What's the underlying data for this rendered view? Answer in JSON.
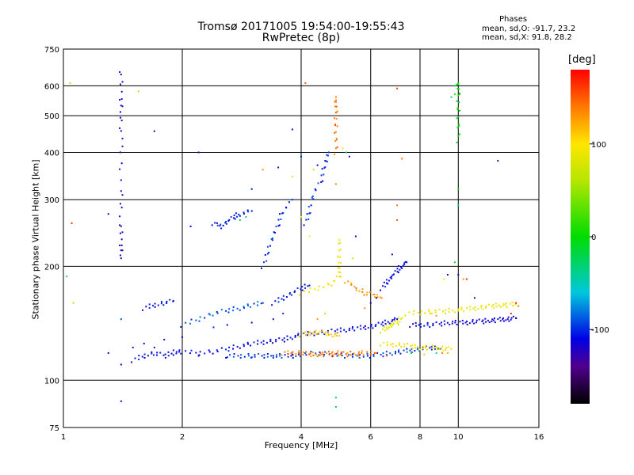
{
  "title_line1": "Tromsø 20171005 19:54:00-19:55:43",
  "title_line2": "RwPretec (8p)",
  "phases": {
    "title": "Phases",
    "o_text": "mean, sd,O: -91.7, 23.2",
    "x_text": "mean, sd,X:  91.8, 28.2"
  },
  "colorbar": {
    "unit": "[deg]",
    "tick_labels": [
      "100",
      "0",
      "-100"
    ],
    "tick_values": [
      100,
      0,
      -100
    ],
    "range": [
      -180,
      180
    ]
  },
  "chart_data": {
    "type": "scatter",
    "xlabel": "Frequency [MHz]",
    "ylabel": "Stationary phase Virtual Height [km]",
    "xscale": "log",
    "yscale": "log",
    "xlim": [
      1,
      16
    ],
    "ylim": [
      75,
      750
    ],
    "xticks": [
      1,
      2,
      4,
      6,
      8,
      10,
      16
    ],
    "yticks": [
      75,
      100,
      200,
      300,
      400,
      500,
      600,
      750
    ],
    "grid": true,
    "series": [
      {
        "trace": [
          [
            1.5,
            113
          ],
          [
            1.6,
            116
          ],
          [
            1.7,
            118
          ],
          [
            1.8,
            116
          ],
          [
            1.9,
            118
          ],
          [
            2.0,
            119
          ],
          [
            2.2,
            118
          ],
          [
            2.4,
            119
          ],
          [
            2.6,
            121
          ],
          [
            2.8,
            123
          ],
          [
            3.0,
            125
          ],
          [
            3.2,
            126
          ],
          [
            3.4,
            127
          ],
          [
            3.6,
            128
          ],
          [
            3.8,
            130
          ],
          [
            4.0,
            132
          ],
          [
            4.3,
            133
          ],
          [
            4.6,
            134
          ],
          [
            4.9,
            135
          ],
          [
            5.2,
            136
          ],
          [
            5.5,
            137
          ],
          [
            5.8,
            138
          ],
          [
            6.1,
            139
          ],
          [
            6.4,
            141
          ],
          [
            6.7,
            143
          ],
          [
            7.0,
            145
          ]
        ],
        "phase": -110
      },
      {
        "trace": [
          [
            2.6,
            116
          ],
          [
            2.8,
            116
          ],
          [
            3.0,
            116
          ],
          [
            3.2,
            116
          ],
          [
            3.4,
            116
          ],
          [
            3.6,
            116
          ],
          [
            3.8,
            116
          ],
          [
            4.0,
            117
          ],
          [
            4.4,
            118
          ],
          [
            4.8,
            117
          ],
          [
            5.2,
            116
          ],
          [
            5.6,
            116
          ],
          [
            6.0,
            116
          ],
          [
            6.4,
            117
          ],
          [
            6.8,
            118
          ],
          [
            7.2,
            119
          ],
          [
            7.6,
            120
          ],
          [
            8.0,
            121
          ],
          [
            8.5,
            122
          ],
          [
            9.0,
            121
          ]
        ],
        "phase": -95
      },
      {
        "trace": [
          [
            3.6,
            118
          ],
          [
            3.8,
            118
          ],
          [
            4.0,
            118
          ],
          [
            4.2,
            117
          ],
          [
            4.4,
            117
          ],
          [
            4.6,
            117
          ],
          [
            4.8,
            118
          ],
          [
            5.0,
            118
          ],
          [
            5.2,
            117
          ],
          [
            5.5,
            118
          ],
          [
            5.8,
            118
          ],
          [
            6.2,
            118
          ]
        ],
        "phase": 140
      },
      {
        "trace": [
          [
            4.0,
            132
          ],
          [
            4.2,
            133
          ],
          [
            4.4,
            134
          ],
          [
            4.6,
            133
          ],
          [
            4.8,
            132
          ],
          [
            5.0,
            131
          ]
        ],
        "phase": 110
      },
      {
        "trace": [
          [
            6.4,
            135
          ],
          [
            6.6,
            138
          ],
          [
            6.8,
            140
          ],
          [
            7.0,
            142
          ],
          [
            7.2,
            146
          ]
        ],
        "phase": 85
      },
      {
        "trace": [
          [
            7.6,
            140
          ],
          [
            8.0,
            140
          ],
          [
            8.5,
            140
          ],
          [
            9.0,
            141
          ],
          [
            9.5,
            142
          ],
          [
            10.0,
            142
          ],
          [
            10.5,
            142
          ],
          [
            11.0,
            143
          ],
          [
            11.5,
            143
          ],
          [
            12.0,
            144
          ],
          [
            12.5,
            144
          ],
          [
            13.0,
            145
          ],
          [
            13.5,
            145
          ],
          [
            14.0,
            146
          ]
        ],
        "phase": -115
      },
      {
        "trace": [
          [
            7.4,
            150
          ],
          [
            8.0,
            151
          ],
          [
            8.6,
            152
          ],
          [
            9.2,
            152
          ],
          [
            9.8,
            153
          ],
          [
            10.4,
            154
          ],
          [
            11.0,
            155
          ],
          [
            11.6,
            156
          ],
          [
            12.2,
            157
          ],
          [
            12.8,
            158
          ],
          [
            13.4,
            158
          ],
          [
            14.0,
            159
          ]
        ],
        "phase": 90
      },
      {
        "trace": [
          [
            3.4,
            160
          ],
          [
            3.6,
            165
          ],
          [
            3.8,
            170
          ],
          [
            4.0,
            175
          ],
          [
            4.2,
            178
          ]
        ],
        "phase": -105
      },
      {
        "trace": [
          [
            4.0,
            170
          ],
          [
            4.4,
            175
          ],
          [
            4.8,
            180
          ],
          [
            5.0,
            190
          ],
          [
            5.0,
            200
          ],
          [
            5.0,
            215
          ],
          [
            5.0,
            235
          ]
        ],
        "phase": 95
      },
      {
        "trace": [
          [
            4.1,
            260
          ],
          [
            4.2,
            280
          ],
          [
            4.3,
            310
          ],
          [
            4.5,
            340
          ],
          [
            4.6,
            370
          ],
          [
            4.7,
            400
          ]
        ],
        "phase": -100
      },
      {
        "trace": [
          [
            3.2,
            200
          ],
          [
            3.3,
            220
          ],
          [
            3.4,
            240
          ],
          [
            3.5,
            260
          ],
          [
            3.6,
            280
          ],
          [
            3.8,
            300
          ]
        ],
        "phase": -100
      },
      {
        "trace": [
          [
            4.9,
            400
          ],
          [
            4.9,
            440
          ],
          [
            4.9,
            480
          ],
          [
            4.9,
            520
          ],
          [
            4.9,
            550
          ]
        ],
        "phase": 140
      },
      {
        "trace": [
          [
            10.0,
            430
          ],
          [
            10.0,
            480
          ],
          [
            10.0,
            530
          ],
          [
            10.0,
            580
          ],
          [
            10.0,
            610
          ]
        ],
        "phase": 0
      },
      {
        "trace": [
          [
            1.4,
            660
          ],
          [
            1.4,
            560
          ],
          [
            1.4,
            500
          ],
          [
            1.4,
            420
          ],
          [
            1.4,
            320
          ],
          [
            1.4,
            260
          ],
          [
            1.4,
            230
          ],
          [
            1.4,
            210
          ]
        ],
        "phase": -120
      },
      {
        "trace": [
          [
            2.4,
            260
          ],
          [
            2.5,
            255
          ],
          [
            2.6,
            262
          ],
          [
            2.7,
            270
          ],
          [
            2.8,
            275
          ],
          [
            3.0,
            280
          ]
        ],
        "phase": -105
      },
      {
        "trace": [
          [
            6.4,
            175
          ],
          [
            6.6,
            182
          ],
          [
            6.8,
            188
          ],
          [
            7.0,
            195
          ],
          [
            7.2,
            200
          ],
          [
            7.4,
            205
          ]
        ],
        "phase": -110
      },
      {
        "trace": [
          [
            6.4,
            125
          ],
          [
            6.8,
            124
          ],
          [
            7.2,
            124
          ],
          [
            7.6,
            123
          ],
          [
            8.0,
            122
          ],
          [
            8.4,
            122
          ],
          [
            8.8,
            122
          ],
          [
            9.2,
            121
          ],
          [
            9.6,
            121
          ]
        ],
        "phase": 100
      },
      {
        "trace": [
          [
            5.2,
            183
          ],
          [
            5.5,
            175
          ],
          [
            5.8,
            170
          ],
          [
            6.1,
            168
          ],
          [
            6.4,
            165
          ]
        ],
        "phase": 130
      },
      {
        "trace": [
          [
            2.0,
            140
          ],
          [
            2.2,
            145
          ],
          [
            2.4,
            150
          ],
          [
            2.6,
            153
          ],
          [
            2.8,
            155
          ],
          [
            3.0,
            158
          ],
          [
            3.2,
            160
          ]
        ],
        "phase": -90
      },
      {
        "trace": [
          [
            1.6,
            155
          ],
          [
            1.7,
            158
          ],
          [
            1.8,
            160
          ],
          [
            1.9,
            162
          ]
        ],
        "phase": -110
      }
    ],
    "points": [
      [
        1.04,
        610,
        60
      ],
      [
        1.05,
        260,
        160
      ],
      [
        1.06,
        160,
        60
      ],
      [
        1.02,
        188,
        -40
      ],
      [
        1.3,
        275,
        -110
      ],
      [
        1.3,
        118,
        -110
      ],
      [
        1.55,
        580,
        60
      ],
      [
        1.7,
        455,
        -125
      ],
      [
        1.4,
        88,
        -125
      ],
      [
        1.4,
        110,
        -110
      ],
      [
        1.4,
        145,
        -90
      ],
      [
        2.2,
        400,
        -130
      ],
      [
        2.1,
        255,
        -110
      ],
      [
        2.8,
        265,
        -20
      ],
      [
        2.9,
        270,
        -40
      ],
      [
        3.0,
        320,
        -100
      ],
      [
        3.2,
        360,
        130
      ],
      [
        3.5,
        365,
        -130
      ],
      [
        3.8,
        460,
        -120
      ],
      [
        3.8,
        345,
        80
      ],
      [
        4.0,
        390,
        -100
      ],
      [
        4.1,
        610,
        150
      ],
      [
        4.3,
        360,
        60
      ],
      [
        4.4,
        370,
        -110
      ],
      [
        4.6,
        380,
        -120
      ],
      [
        4.9,
        560,
        140
      ],
      [
        4.9,
        330,
        140
      ],
      [
        5.1,
        410,
        100
      ],
      [
        5.2,
        400,
        -40
      ],
      [
        5.3,
        390,
        -120
      ],
      [
        5.5,
        240,
        -110
      ],
      [
        5.4,
        210,
        80
      ],
      [
        4.2,
        240,
        100
      ],
      [
        4.0,
        270,
        100
      ],
      [
        6.8,
        215,
        -130
      ],
      [
        7.0,
        590,
        160
      ],
      [
        7.2,
        385,
        140
      ],
      [
        7.0,
        265,
        150
      ],
      [
        7.0,
        290,
        140
      ],
      [
        9.6,
        560,
        -30
      ],
      [
        9.8,
        600,
        -30
      ],
      [
        9.8,
        570,
        20
      ],
      [
        10.0,
        320,
        0
      ],
      [
        10.0,
        290,
        -20
      ],
      [
        9.8,
        205,
        0
      ],
      [
        10.0,
        190,
        -120
      ],
      [
        10.3,
        185,
        130
      ],
      [
        10.5,
        185,
        170
      ],
      [
        12.6,
        380,
        -150
      ],
      [
        4.9,
        90,
        -30
      ],
      [
        4.9,
        85,
        -20
      ],
      [
        9.4,
        190,
        -110
      ],
      [
        9.2,
        185,
        100
      ],
      [
        11.0,
        165,
        -120
      ],
      [
        6.2,
        165,
        -110
      ],
      [
        6.0,
        160,
        -130
      ],
      [
        5.8,
        155,
        130
      ],
      [
        4.6,
        150,
        110
      ],
      [
        4.4,
        145,
        130
      ],
      [
        3.6,
        150,
        -100
      ],
      [
        3.4,
        145,
        -130
      ],
      [
        3.0,
        142,
        -120
      ],
      [
        2.6,
        140,
        -110
      ],
      [
        2.4,
        138,
        -100
      ],
      [
        2.0,
        130,
        -120
      ],
      [
        1.8,
        128,
        -110
      ],
      [
        1.6,
        125,
        -105
      ],
      [
        1.5,
        122,
        -100
      ],
      [
        14.0,
        160,
        170
      ],
      [
        14.2,
        157,
        140
      ],
      [
        13.6,
        150,
        170
      ],
      [
        8.5,
        150,
        110
      ],
      [
        8.8,
        148,
        130
      ],
      [
        9.1,
        118,
        140
      ],
      [
        9.4,
        118,
        120
      ],
      [
        8.8,
        118,
        -60
      ],
      [
        8.2,
        117,
        110
      ],
      [
        7.6,
        118,
        0
      ],
      [
        6.6,
        116,
        140
      ],
      [
        6.0,
        117,
        150
      ],
      [
        5.6,
        116,
        130
      ],
      [
        5.4,
        117,
        -100
      ],
      [
        4.8,
        116,
        170
      ],
      [
        4.2,
        117,
        150
      ],
      [
        3.8,
        117,
        -130
      ],
      [
        3.4,
        116,
        -115
      ],
      [
        3.0,
        115,
        -100
      ],
      [
        2.6,
        115,
        -110
      ],
      [
        2.2,
        116,
        -110
      ],
      [
        1.9,
        120,
        -120
      ],
      [
        1.7,
        122,
        -115
      ]
    ]
  }
}
